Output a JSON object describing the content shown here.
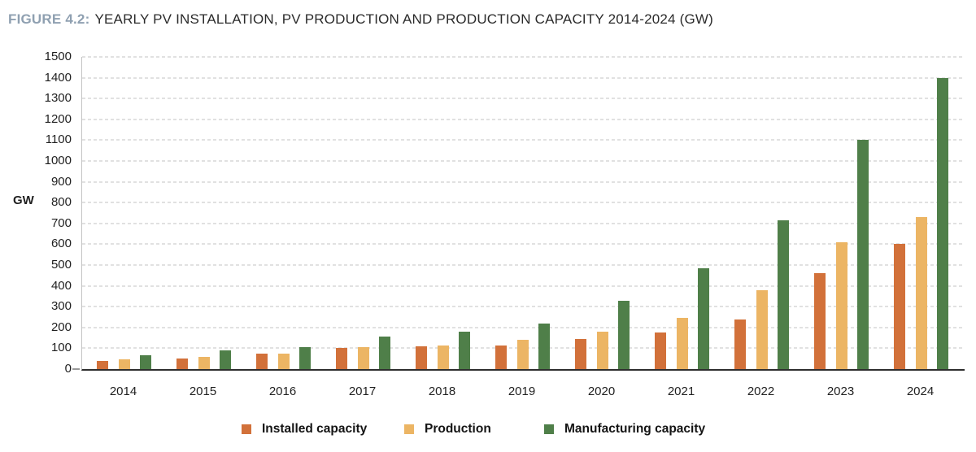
{
  "header": {
    "figure_label": "FIGURE 4.2:",
    "title": "YEARLY PV INSTALLATION, PV PRODUCTION AND PRODUCTION CAPACITY 2014-2024 (GW)"
  },
  "chart_data": {
    "type": "bar",
    "title": "YEARLY PV INSTALLATION, PV PRODUCTION AND PRODUCTION CAPACITY 2014-2024 (GW)",
    "categories": [
      "2014",
      "2015",
      "2016",
      "2017",
      "2018",
      "2019",
      "2020",
      "2021",
      "2022",
      "2023",
      "2024"
    ],
    "series": [
      {
        "name": "Installed capacity",
        "color": "#d2713a",
        "values": [
          40,
          50,
          75,
          100,
          110,
          115,
          145,
          175,
          240,
          460,
          600
        ]
      },
      {
        "name": "Production",
        "color": "#ecb564",
        "values": [
          45,
          60,
          75,
          105,
          115,
          140,
          180,
          245,
          380,
          610,
          730
        ]
      },
      {
        "name": "Manufacturing capacity",
        "color": "#4f7f49",
        "values": [
          65,
          90,
          105,
          155,
          180,
          220,
          330,
          485,
          715,
          1100,
          1400
        ]
      }
    ],
    "xlabel": "",
    "ylabel": "GW",
    "ylim": [
      0,
      1500
    ],
    "ytick_interval": 100,
    "grid": "horizontal-dashed",
    "legend_position": "bottom"
  }
}
